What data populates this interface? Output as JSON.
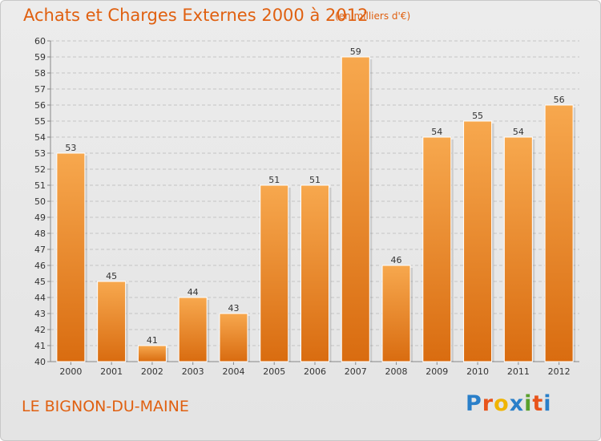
{
  "header": {
    "title": "Achats et Charges Externes 2000 à 2012",
    "subtitle": "(en milliers d'€)"
  },
  "footer": {
    "commune": "LE BIGNON-DU-MAINE",
    "logo_text": "Proxiti",
    "logo_colors": [
      "#2a7fc9",
      "#e8541b",
      "#f0b400",
      "#2a7fc9",
      "#5aa02c",
      "#e8541b",
      "#2a7fc9"
    ]
  },
  "colors": {
    "accent": "#e06010",
    "bar_top": "#f7a84e",
    "bar_bottom": "#d96c10",
    "grid": "#c4c4c4"
  },
  "chart_data": {
    "type": "bar",
    "title": "Achats et Charges Externes 2000 à 2012",
    "subtitle": "(en milliers d'€)",
    "categories": [
      "2000",
      "2001",
      "2002",
      "2003",
      "2004",
      "2005",
      "2006",
      "2007",
      "2008",
      "2009",
      "2010",
      "2011",
      "2012"
    ],
    "values": [
      53,
      45,
      41,
      44,
      43,
      51,
      51,
      59,
      46,
      54,
      55,
      54,
      56
    ],
    "ylim": [
      40,
      60
    ],
    "yticks": [
      40,
      41,
      42,
      43,
      44,
      45,
      46,
      47,
      48,
      49,
      50,
      51,
      52,
      53,
      54,
      55,
      56,
      57,
      58,
      59,
      60
    ],
    "grid": true,
    "data_labels": true,
    "legend": "none"
  }
}
